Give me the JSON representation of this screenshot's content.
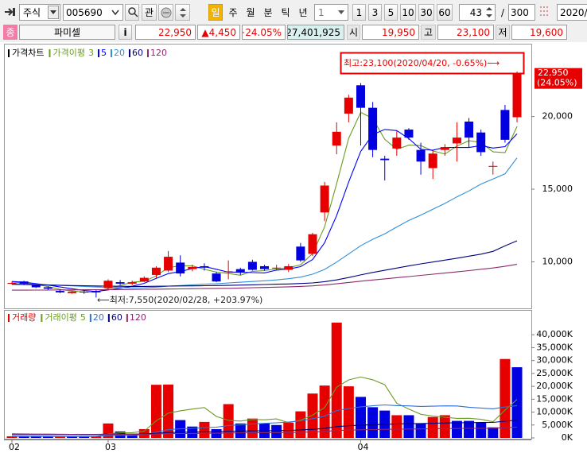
{
  "toolbar": {
    "market": "주식",
    "code": "005690",
    "interest": "관",
    "periods": [
      "일",
      "주",
      "월",
      "분",
      "틱",
      "년"
    ],
    "unit": "1",
    "intervals": [
      "1",
      "3",
      "5",
      "10",
      "30",
      "60"
    ],
    "count": "43",
    "separator": "/",
    "total": "300",
    "date": "2020/0"
  },
  "quote": {
    "badge": "종",
    "name": "파미셀",
    "info": "i",
    "price": "22,950",
    "change": "▲4,450",
    "rate": "+24.05%",
    "volume": "27,401,925",
    "open_label": "시",
    "open": "19,950",
    "high_label": "고",
    "high": "23,100",
    "low_label": "저",
    "low": "19,600"
  },
  "chart_data": [
    {
      "type": "candlestick",
      "legend_title": "가격차트",
      "ma_title": "가격이평",
      "open": [
        8500,
        8650,
        8400,
        8250,
        8000,
        7850,
        7950,
        8000,
        8200,
        8600,
        8500,
        8650,
        9100,
        9400,
        9950,
        9500,
        9700,
        9200,
        9300,
        9500,
        10000,
        9700,
        9550,
        9450,
        11050,
        10550,
        13400,
        18000,
        20200,
        22150,
        20600,
        17100,
        17800,
        19100,
        17700,
        16450,
        17700,
        18150,
        19650,
        18900,
        16550,
        20450,
        19950
      ],
      "high": [
        8650,
        8700,
        8450,
        8300,
        8100,
        8000,
        8050,
        8050,
        8800,
        8750,
        8700,
        9000,
        9700,
        10750,
        10450,
        9800,
        9900,
        9300,
        10100,
        9600,
        10150,
        9800,
        9800,
        9850,
        11300,
        12000,
        15500,
        19600,
        21500,
        22300,
        21000,
        17300,
        19000,
        19200,
        18200,
        17700,
        18100,
        19600,
        19900,
        19100,
        16900,
        20800,
        23100
      ],
      "low": [
        8450,
        8400,
        8200,
        8050,
        7850,
        7800,
        7800,
        7550,
        8100,
        8400,
        8400,
        8600,
        8900,
        9300,
        9000,
        9350,
        9400,
        8600,
        8800,
        9100,
        9400,
        9400,
        9450,
        9300,
        10000,
        10400,
        12800,
        17400,
        19600,
        18000,
        17200,
        15600,
        17300,
        18400,
        16000,
        15700,
        17300,
        16900,
        17900,
        17300,
        16000,
        18200,
        19600
      ],
      "close": [
        8550,
        8500,
        8250,
        8150,
        7900,
        7950,
        7900,
        7900,
        8700,
        8500,
        8600,
        8900,
        9600,
        10350,
        9200,
        9650,
        9600,
        8650,
        9350,
        9250,
        9450,
        9500,
        9600,
        9700,
        10100,
        11900,
        15250,
        18950,
        21300,
        20600,
        17700,
        17000,
        18550,
        18550,
        16900,
        17450,
        17900,
        18550,
        18550,
        17550,
        16600,
        18400,
        22950
      ],
      "up_color": "#e60000",
      "down_color": "#0000e0",
      "series": [
        {
          "name": "3",
          "color": "#6b9b23",
          "values": [
            8600,
            8550,
            8433,
            8300,
            8100,
            8000,
            7917,
            7917,
            8167,
            8367,
            8600,
            8667,
            9033,
            9617,
            9717,
            9733,
            9483,
            9300,
            9200,
            9083,
            9350,
            9400,
            9517,
            9600,
            9800,
            10567,
            12417,
            15367,
            18500,
            20283,
            19867,
            18433,
            17750,
            18033,
            18000,
            17633,
            17417,
            17967,
            18333,
            18217,
            17567,
            17517,
            19317
          ]
        },
        {
          "name": "5",
          "color": "#0000ff",
          "values": [
            8650,
            8600,
            8500,
            8400,
            8270,
            8150,
            8030,
            7960,
            8070,
            8190,
            8320,
            8520,
            8860,
            9190,
            9330,
            9540,
            9680,
            9490,
            9290,
            9300,
            9260,
            9240,
            9430,
            9500,
            9670,
            10160,
            11310,
            13180,
            15500,
            17600,
            18760,
            19110,
            19030,
            18480,
            17740,
            17690,
            17870,
            17870,
            17870,
            18000,
            17830,
            17930,
            18810
          ]
        },
        {
          "name": "20",
          "color": "#2f8fd8",
          "values": [
            8500,
            8480,
            8450,
            8420,
            8380,
            8350,
            8310,
            8270,
            8250,
            8230,
            8210,
            8220,
            8260,
            8330,
            8370,
            8420,
            8470,
            8490,
            8550,
            8600,
            8650,
            8700,
            8760,
            8840,
            8950,
            9150,
            9480,
            9980,
            10540,
            11110,
            11550,
            11930,
            12400,
            12850,
            13220,
            13620,
            14020,
            14470,
            14880,
            15350,
            15700,
            16050,
            17150
          ]
        },
        {
          "name": "60",
          "color": "#000080",
          "values": [
            8450,
            8440,
            8420,
            8400,
            8390,
            8370,
            8360,
            8340,
            8330,
            8320,
            8310,
            8310,
            8320,
            8330,
            8340,
            8350,
            8360,
            8370,
            8380,
            8400,
            8420,
            8440,
            8460,
            8480,
            8510,
            8550,
            8640,
            8760,
            8920,
            9100,
            9270,
            9420,
            9570,
            9720,
            9860,
            9990,
            10120,
            10250,
            10390,
            10530,
            10720,
            11100,
            11450
          ]
        },
        {
          "name": "120",
          "color": "#8b2a6b",
          "values": [
            8050,
            8050,
            8060,
            8060,
            8070,
            8070,
            8080,
            8080,
            8090,
            8090,
            8100,
            8110,
            8120,
            8130,
            8140,
            8150,
            8160,
            8170,
            8180,
            8200,
            8220,
            8240,
            8260,
            8280,
            8310,
            8350,
            8410,
            8490,
            8580,
            8670,
            8750,
            8830,
            8910,
            8990,
            9070,
            9150,
            9230,
            9310,
            9400,
            9490,
            9580,
            9690,
            9830
          ]
        }
      ],
      "ylim": [
        6800,
        24900
      ],
      "yticks": [
        {
          "value": 10000,
          "label": "10,000"
        },
        {
          "value": 15000,
          "label": "15,000"
        },
        {
          "value": 20000,
          "label": "20,000"
        }
      ],
      "last_price": {
        "value": 22950,
        "label": "22,950"
      },
      "last_change": "(24.05%)",
      "annotations": [
        "최고:23,100(2020/04/20, -0.65%)⟶",
        "⟵최저:7,550(2020/02/28, +203.97%)"
      ]
    },
    {
      "type": "bar",
      "legend_title": "거래량",
      "ma_title": "거래이평",
      "categories": [
        "02",
        null,
        null,
        null,
        null,
        null,
        null,
        null,
        "03",
        null,
        null,
        null,
        null,
        null,
        null,
        null,
        null,
        null,
        null,
        null,
        null,
        null,
        null,
        null,
        null,
        null,
        null,
        null,
        null,
        "04",
        null,
        null,
        null,
        null,
        null,
        null,
        null,
        null,
        null,
        null,
        null,
        null,
        null
      ],
      "values": [
        600,
        600,
        500,
        500,
        600,
        500,
        500,
        700,
        5600,
        2500,
        900,
        3400,
        20600,
        20700,
        6900,
        4400,
        6200,
        3400,
        13100,
        5600,
        7500,
        5600,
        5000,
        5900,
        10300,
        17200,
        20300,
        44700,
        20000,
        15900,
        11900,
        10600,
        8800,
        8800,
        5600,
        8100,
        8800,
        6600,
        6600,
        5900,
        4100,
        30600,
        27400
      ],
      "colors": [
        "#e60000",
        "#0000e0",
        "#0000e0",
        "#0000e0",
        "#e60000",
        "#0000e0",
        "#0000e0",
        "#e60000",
        "#e60000",
        "#0000e0",
        "#0000e0",
        "#e60000",
        "#e60000",
        "#e60000",
        "#0000e0",
        "#0000e0",
        "#e60000",
        "#0000e0",
        "#e60000",
        "#0000e0",
        "#e60000",
        "#0000e0",
        "#0000e0",
        "#e60000",
        "#e60000",
        "#e60000",
        "#e60000",
        "#e60000",
        "#e60000",
        "#0000e0",
        "#0000e0",
        "#0000e0",
        "#e60000",
        "#0000e0",
        "#0000e0",
        "#e60000",
        "#e60000",
        "#0000e0",
        "#0000e0",
        "#0000e0",
        "#0000e0",
        "#e60000",
        "#0000e0"
      ],
      "series": [
        {
          "name": "5",
          "color": "#6b9b23",
          "values": [
            600,
            600,
            580,
            560,
            560,
            540,
            520,
            560,
            1580,
            1960,
            2040,
            2620,
            6600,
            9620,
            10500,
            11200,
            11760,
            8320,
            6800,
            6540,
            7160,
            7040,
            7360,
            5920,
            6860,
            8800,
            11740,
            19680,
            22500,
            23620,
            22560,
            20620,
            13440,
            11200,
            9140,
            8460,
            8020,
            7580,
            7600,
            7200,
            6300,
            10760,
            14920
          ]
        },
        {
          "name": "20",
          "color": "#2f6fd8",
          "values": [
            700,
            690,
            680,
            670,
            660,
            650,
            640,
            650,
            900,
            1000,
            1030,
            1190,
            2200,
            3200,
            3500,
            3700,
            4000,
            4150,
            4800,
            5050,
            5400,
            5650,
            5870,
            6140,
            6620,
            7460,
            8400,
            10600,
            11400,
            12050,
            12450,
            12800,
            12500,
            12410,
            12200,
            12300,
            12430,
            12400,
            11900,
            11600,
            11280,
            12000,
            12500
          ]
        },
        {
          "name": "60",
          "color": "#000080",
          "values": [
            1500,
            1480,
            1460,
            1440,
            1420,
            1400,
            1380,
            1370,
            1450,
            1480,
            1480,
            1520,
            1800,
            2100,
            2200,
            2250,
            2330,
            2360,
            2560,
            2620,
            2720,
            2780,
            2840,
            2910,
            3070,
            3340,
            3660,
            4380,
            4700,
            4950,
            5130,
            5280,
            5400,
            5510,
            5570,
            5670,
            5780,
            5850,
            5920,
            5980,
            6020,
            6480,
            6900
          ]
        },
        {
          "name": "120",
          "color": "#8b2a6b",
          "values": [
            1300,
            1300,
            1290,
            1290,
            1280,
            1280,
            1270,
            1270,
            1310,
            1320,
            1320,
            1340,
            1500,
            1660,
            1710,
            1740,
            1790,
            1810,
            1910,
            1950,
            2000,
            2040,
            2070,
            2110,
            2190,
            2330,
            2490,
            2860,
            3020,
            3150,
            3240,
            3320,
            3390,
            3450,
            3490,
            3550,
            3600,
            3650,
            3690,
            3730,
            3760,
            3990,
            4200
          ]
        }
      ],
      "ylim": [
        0,
        49000
      ],
      "yticks": [
        {
          "value": 0,
          "label": "0K"
        },
        {
          "value": 5000,
          "label": "5,000K"
        },
        {
          "value": 10000,
          "label": "10,000K"
        },
        {
          "value": 15000,
          "label": "15,000K"
        },
        {
          "value": 20000,
          "label": "20,000K"
        },
        {
          "value": 25000,
          "label": "25,000K"
        },
        {
          "value": 30000,
          "label": "30,000K"
        },
        {
          "value": 35000,
          "label": "35,000K"
        },
        {
          "value": 40000,
          "label": "40,000K"
        }
      ]
    }
  ]
}
